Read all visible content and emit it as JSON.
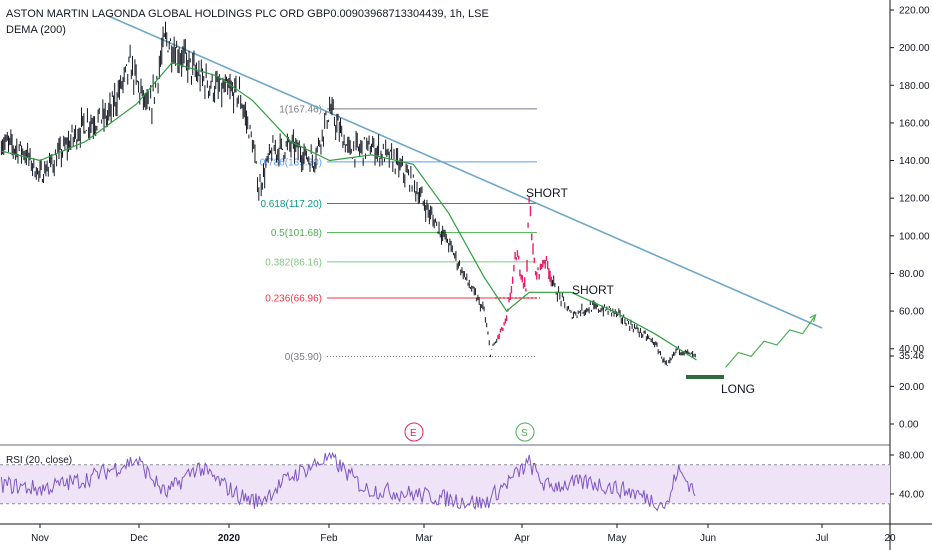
{
  "header": {
    "title": "ASTON MARTIN LAGONDA GLOBAL HOLDINGS PLC ORD GBP0.00903968713304439, 1h, LSE",
    "indicator": "DEMA (200)"
  },
  "rsi_label": "RSI (20, close)",
  "colors": {
    "candle": "#131722",
    "highlight_candle": "#e91e63",
    "dema": "#2e9e3f",
    "trendline": "#6fa8c7",
    "projection": "#4caf50",
    "long_bar": "#2e6b3f",
    "rsi_line": "#7e57c2",
    "rsi_band": "#efe3f8"
  },
  "chart_data": [
    {
      "type": "line",
      "title": "",
      "x_labels": [
        "Nov",
        "Dec",
        "2020",
        "Feb",
        "Mar",
        "Apr",
        "May",
        "Jun",
        "Jul",
        "20"
      ],
      "y_ticks": [
        "220.00",
        "200.00",
        "180.00",
        "160.00",
        "140.00",
        "120.00",
        "100.00",
        "80.00",
        "60.00",
        "40.00",
        "20.00",
        "0.00"
      ],
      "ylim": [
        0,
        220
      ],
      "last_price": "35.46",
      "price_series": [
        {
          "x": "Oct 20",
          "y": 150
        },
        {
          "x": "Oct 27",
          "y": 145
        },
        {
          "x": "Nov 1",
          "y": 132
        },
        {
          "x": "Nov 8",
          "y": 145
        },
        {
          "x": "Nov 15",
          "y": 160
        },
        {
          "x": "Nov 22",
          "y": 163
        },
        {
          "x": "Nov 29",
          "y": 190
        },
        {
          "x": "Dec 5",
          "y": 165
        },
        {
          "x": "Dec 10",
          "y": 205
        },
        {
          "x": "Dec 15",
          "y": 195
        },
        {
          "x": "Dec 20",
          "y": 185
        },
        {
          "x": "Dec 26",
          "y": 178
        },
        {
          "x": "Jan 2",
          "y": 175
        },
        {
          "x": "Jan 6",
          "y": 150
        },
        {
          "x": "Jan 8",
          "y": 125
        },
        {
          "x": "Jan 12",
          "y": 145
        },
        {
          "x": "Jan 18",
          "y": 148
        },
        {
          "x": "Jan 25",
          "y": 140
        },
        {
          "x": "Jan 30",
          "y": 167
        },
        {
          "x": "Feb 5",
          "y": 145
        },
        {
          "x": "Feb 12",
          "y": 147
        },
        {
          "x": "Feb 19",
          "y": 140
        },
        {
          "x": "Feb 25",
          "y": 128
        },
        {
          "x": "Mar 1",
          "y": 112
        },
        {
          "x": "Mar 7",
          "y": 96
        },
        {
          "x": "Mar 13",
          "y": 75
        },
        {
          "x": "Mar 18",
          "y": 60
        },
        {
          "x": "Mar 20",
          "y": 38
        },
        {
          "x": "Mar 25",
          "y": 55
        },
        {
          "x": "Mar 28",
          "y": 90
        },
        {
          "x": "Mar 31",
          "y": 72
        },
        {
          "x": "Apr 1",
          "y": 118
        },
        {
          "x": "Apr 3",
          "y": 78
        },
        {
          "x": "Apr 6",
          "y": 88
        },
        {
          "x": "Apr 9",
          "y": 72
        },
        {
          "x": "Apr 14",
          "y": 58
        },
        {
          "x": "Apr 20",
          "y": 62
        },
        {
          "x": "Apr 27",
          "y": 60
        },
        {
          "x": "May 3",
          "y": 52
        },
        {
          "x": "May 10",
          "y": 43
        },
        {
          "x": "May 14",
          "y": 30
        },
        {
          "x": "May 17",
          "y": 40
        },
        {
          "x": "May 21",
          "y": 37
        },
        {
          "x": "May 23",
          "y": 35.46
        }
      ],
      "dema_series": [
        {
          "x": "Oct 20",
          "y": 145
        },
        {
          "x": "Nov 1",
          "y": 140
        },
        {
          "x": "Nov 15",
          "y": 150
        },
        {
          "x": "Dec 1",
          "y": 170
        },
        {
          "x": "Dec 12",
          "y": 192
        },
        {
          "x": "Dec 26",
          "y": 185
        },
        {
          "x": "Jan 6",
          "y": 172
        },
        {
          "x": "Jan 18",
          "y": 150
        },
        {
          "x": "Jan 30",
          "y": 140
        },
        {
          "x": "Feb 12",
          "y": 143
        },
        {
          "x": "Feb 25",
          "y": 138
        },
        {
          "x": "Mar 7",
          "y": 112
        },
        {
          "x": "Mar 18",
          "y": 78
        },
        {
          "x": "Mar 25",
          "y": 60
        },
        {
          "x": "Apr 1",
          "y": 70
        },
        {
          "x": "Apr 14",
          "y": 70
        },
        {
          "x": "Apr 27",
          "y": 60
        },
        {
          "x": "May 10",
          "y": 48
        },
        {
          "x": "May 23",
          "y": 34
        }
      ],
      "trendline": [
        {
          "x": "Nov 22",
          "y": 217
        },
        {
          "x": "Jul 1",
          "y": 51
        }
      ],
      "projection": [
        {
          "x": "Jun 1",
          "y": 30
        },
        {
          "x": "Jun 5",
          "y": 38
        },
        {
          "x": "Jun 9",
          "y": 36
        },
        {
          "x": "Jun 13",
          "y": 44
        },
        {
          "x": "Jun 17",
          "y": 42
        },
        {
          "x": "Jun 21",
          "y": 50
        },
        {
          "x": "Jun 25",
          "y": 48
        },
        {
          "x": "Jun 29",
          "y": 58
        }
      ],
      "fibonacci": [
        {
          "label": "1(167.46)",
          "value": 167.46,
          "color": "#787b86"
        },
        {
          "label": "0.786(139.30)",
          "value": 139.3,
          "color": "#5b9cf6"
        },
        {
          "label": "0.618(117.20)",
          "value": 117.2,
          "color": "#089981"
        },
        {
          "label": "0.5(101.68)",
          "value": 101.68,
          "color": "#4caf50"
        },
        {
          "label": "0.382(86.16)",
          "value": 86.16,
          "color": "#81c784"
        },
        {
          "label": "0.236(66.96)",
          "value": 66.96,
          "color": "#f23645"
        },
        {
          "label": "0(35.90)",
          "value": 35.9,
          "color": "#787b86"
        }
      ],
      "annotations": [
        "SHORT",
        "SHORT",
        "LONG"
      ],
      "event_markers": [
        "E",
        "S"
      ]
    },
    {
      "type": "line",
      "title": "RSI (20, close)",
      "y_ticks": [
        "80.00",
        "40.00"
      ],
      "ylim": [
        20,
        90
      ],
      "band": [
        30,
        70
      ],
      "series": [
        {
          "x": "Oct 20",
          "y": 50
        },
        {
          "x": "Nov 1",
          "y": 45
        },
        {
          "x": "Nov 15",
          "y": 55
        },
        {
          "x": "Dec 1",
          "y": 75
        },
        {
          "x": "Dec 10",
          "y": 40
        },
        {
          "x": "Dec 20",
          "y": 68
        },
        {
          "x": "Jan 2",
          "y": 38
        },
        {
          "x": "Jan 8",
          "y": 32
        },
        {
          "x": "Jan 18",
          "y": 58
        },
        {
          "x": "Jan 30",
          "y": 78
        },
        {
          "x": "Feb 10",
          "y": 45
        },
        {
          "x": "Feb 25",
          "y": 40
        },
        {
          "x": "Mar 7",
          "y": 35
        },
        {
          "x": "Mar 18",
          "y": 30
        },
        {
          "x": "Mar 28",
          "y": 60
        },
        {
          "x": "Apr 1",
          "y": 72
        },
        {
          "x": "Apr 6",
          "y": 48
        },
        {
          "x": "Apr 20",
          "y": 52
        },
        {
          "x": "May 3",
          "y": 42
        },
        {
          "x": "May 14",
          "y": 28
        },
        {
          "x": "May 17",
          "y": 65
        },
        {
          "x": "May 23",
          "y": 42
        }
      ]
    }
  ]
}
